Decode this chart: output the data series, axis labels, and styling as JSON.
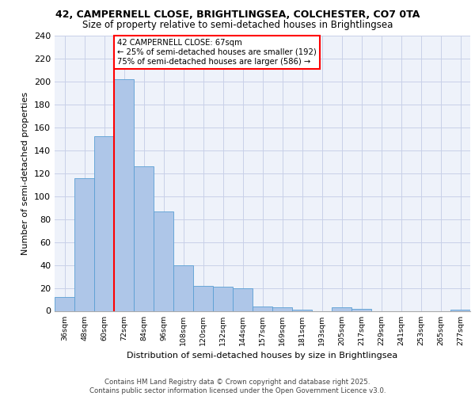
{
  "title1": "42, CAMPERNELL CLOSE, BRIGHTLINGSEA, COLCHESTER, CO7 0TA",
  "title2": "Size of property relative to semi-detached houses in Brightlingsea",
  "xlabel": "Distribution of semi-detached houses by size in Brightlingsea",
  "ylabel": "Number of semi-detached properties",
  "categories": [
    "36sqm",
    "48sqm",
    "60sqm",
    "72sqm",
    "84sqm",
    "96sqm",
    "108sqm",
    "120sqm",
    "132sqm",
    "144sqm",
    "157sqm",
    "169sqm",
    "181sqm",
    "193sqm",
    "205sqm",
    "217sqm",
    "229sqm",
    "241sqm",
    "253sqm",
    "265sqm",
    "277sqm"
  ],
  "values": [
    12,
    116,
    152,
    202,
    126,
    87,
    40,
    22,
    21,
    20,
    4,
    3,
    1,
    0,
    3,
    2,
    0,
    0,
    0,
    0,
    1
  ],
  "bar_color": "#aec6e8",
  "bar_edge_color": "#5a9fd4",
  "vline_x": 2.5,
  "vline_color": "red",
  "annotation_text": "42 CAMPERNELL CLOSE: 67sqm\n← 25% of semi-detached houses are smaller (192)\n75% of semi-detached houses are larger (586) →",
  "annotation_box_color": "white",
  "annotation_box_edge": "red",
  "ylim": [
    0,
    240
  ],
  "yticks": [
    0,
    20,
    40,
    60,
    80,
    100,
    120,
    140,
    160,
    180,
    200,
    220,
    240
  ],
  "footer_text": "Contains HM Land Registry data © Crown copyright and database right 2025.\nContains public sector information licensed under the Open Government Licence v3.0.",
  "background_color": "#eef2fa",
  "grid_color": "#c8d0e8",
  "title1_fontsize": 9,
  "title2_fontsize": 8.5,
  "footer_fontsize": 6.2
}
